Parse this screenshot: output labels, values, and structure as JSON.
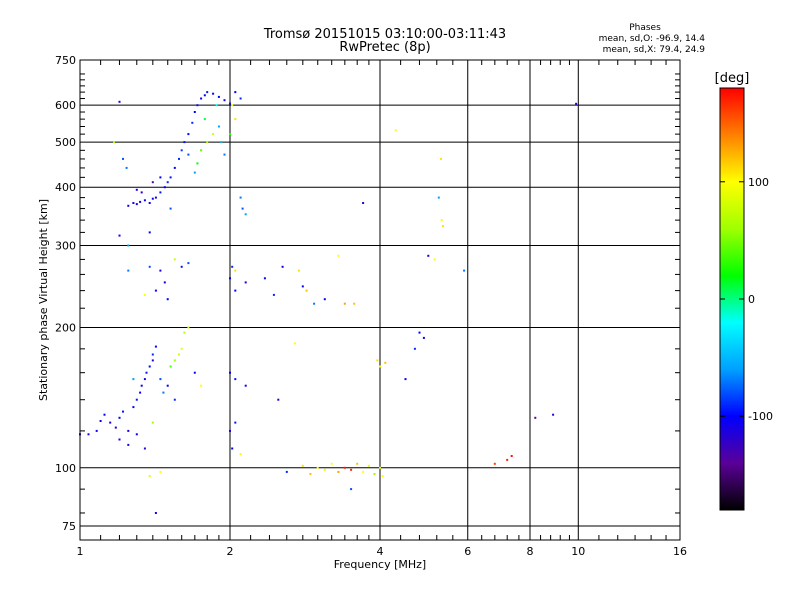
{
  "header": {
    "title_line1": "Tromsø 20151015 03:10:00-03:11:43",
    "title_line2": "RwPretec (8p)",
    "stats_title": "Phases",
    "stats_o": "mean, sd,O: -96.9, 14.4",
    "stats_x": "mean, sd,X:  79.4, 24.9"
  },
  "chart_data": {
    "type": "scatter",
    "xlabel": "Frequency [MHz]",
    "ylabel": "Stationary phase Virtual Height [km]",
    "x_scale": "log",
    "y_scale": "log",
    "xlim": [
      1,
      16
    ],
    "ylim": [
      70,
      750
    ],
    "x_ticks": [
      1,
      2,
      4,
      6,
      8,
      10,
      16
    ],
    "y_ticks": [
      75,
      100,
      200,
      300,
      400,
      500,
      600,
      750
    ],
    "grid": true,
    "colorbar": {
      "label": "[deg]",
      "min": -180,
      "max": 180,
      "ticks": [
        100,
        0,
        -100
      ],
      "colors": [
        "#000000",
        "#5a0098",
        "#0000ff",
        "#00a0ff",
        "#00ffff",
        "#00ff00",
        "#a0ff00",
        "#ffff00",
        "#ff8000",
        "#ff0000"
      ]
    },
    "points": [
      [
        1.0,
        118,
        -110
      ],
      [
        1.04,
        118,
        -110
      ],
      [
        1.08,
        120,
        -108
      ],
      [
        1.1,
        126,
        -105
      ],
      [
        1.12,
        130,
        -100
      ],
      [
        1.15,
        125,
        -112
      ],
      [
        1.18,
        122,
        -110
      ],
      [
        1.2,
        128,
        -100
      ],
      [
        1.22,
        132,
        -95
      ],
      [
        1.25,
        120,
        -110
      ],
      [
        1.28,
        135,
        -100
      ],
      [
        1.3,
        140,
        -95
      ],
      [
        1.32,
        145,
        -100
      ],
      [
        1.33,
        150,
        -105
      ],
      [
        1.35,
        155,
        -110
      ],
      [
        1.36,
        160,
        -95
      ],
      [
        1.38,
        165,
        -100
      ],
      [
        1.4,
        170,
        -110
      ],
      [
        1.4,
        175,
        -90
      ],
      [
        1.42,
        182,
        -100
      ],
      [
        1.45,
        155,
        -80
      ],
      [
        1.47,
        145,
        -70
      ],
      [
        1.5,
        150,
        -100
      ],
      [
        1.52,
        165,
        40
      ],
      [
        1.55,
        170,
        60
      ],
      [
        1.55,
        140,
        -90
      ],
      [
        1.58,
        175,
        80
      ],
      [
        1.6,
        180,
        90
      ],
      [
        1.62,
        195,
        70
      ],
      [
        1.65,
        200,
        85
      ],
      [
        1.7,
        160,
        -100
      ],
      [
        1.75,
        150,
        100
      ],
      [
        1.2,
        115,
        -110
      ],
      [
        1.25,
        112,
        -115
      ],
      [
        1.3,
        118,
        -105
      ],
      [
        1.35,
        110,
        -120
      ],
      [
        1.28,
        155,
        -60
      ],
      [
        1.4,
        125,
        60
      ],
      [
        1.45,
        98,
        100
      ],
      [
        1.38,
        96,
        90
      ],
      [
        1.42,
        80,
        -110
      ],
      [
        1.25,
        365,
        -105
      ],
      [
        1.28,
        370,
        -110
      ],
      [
        1.3,
        368,
        -108
      ],
      [
        1.32,
        372,
        -100
      ],
      [
        1.35,
        375,
        -105
      ],
      [
        1.38,
        370,
        -110
      ],
      [
        1.4,
        378,
        -100
      ],
      [
        1.42,
        380,
        -105
      ],
      [
        1.45,
        390,
        -95
      ],
      [
        1.48,
        400,
        -100
      ],
      [
        1.5,
        410,
        -90
      ],
      [
        1.52,
        420,
        -95
      ],
      [
        1.55,
        440,
        -100
      ],
      [
        1.58,
        460,
        -90
      ],
      [
        1.6,
        480,
        -85
      ],
      [
        1.62,
        500,
        -95
      ],
      [
        1.65,
        520,
        -100
      ],
      [
        1.68,
        550,
        -90
      ],
      [
        1.7,
        580,
        -100
      ],
      [
        1.72,
        600,
        -95
      ],
      [
        1.75,
        620,
        -105
      ],
      [
        1.78,
        630,
        -100
      ],
      [
        1.8,
        640,
        -95
      ],
      [
        1.85,
        635,
        -105
      ],
      [
        1.9,
        625,
        -100
      ],
      [
        1.95,
        615,
        -110
      ],
      [
        2.0,
        605,
        -95
      ],
      [
        2.05,
        640,
        -100
      ],
      [
        2.1,
        620,
        -90
      ],
      [
        1.65,
        470,
        -80
      ],
      [
        1.7,
        430,
        -60
      ],
      [
        1.72,
        450,
        20
      ],
      [
        1.75,
        480,
        40
      ],
      [
        1.8,
        500,
        60
      ],
      [
        1.85,
        520,
        80
      ],
      [
        1.9,
        540,
        -60
      ],
      [
        1.92,
        500,
        -50
      ],
      [
        1.95,
        470,
        -70
      ],
      [
        2.0,
        520,
        30
      ],
      [
        2.02,
        600,
        100
      ],
      [
        2.05,
        560,
        110
      ],
      [
        1.88,
        600,
        -20
      ],
      [
        1.78,
        560,
        10
      ],
      [
        1.2,
        610,
        -110
      ],
      [
        1.17,
        500,
        60
      ],
      [
        1.22,
        460,
        -80
      ],
      [
        1.24,
        440,
        -70
      ],
      [
        1.3,
        395,
        -110
      ],
      [
        1.33,
        390,
        -115
      ],
      [
        1.4,
        410,
        -140
      ],
      [
        1.45,
        420,
        -100
      ],
      [
        1.52,
        360,
        -80
      ],
      [
        1.2,
        315,
        -110
      ],
      [
        1.38,
        320,
        -100
      ],
      [
        1.25,
        300,
        -60
      ],
      [
        1.25,
        265,
        -70
      ],
      [
        1.38,
        270,
        -80
      ],
      [
        1.45,
        265,
        -110
      ],
      [
        1.48,
        250,
        -105
      ],
      [
        1.55,
        280,
        80
      ],
      [
        1.6,
        270,
        -95
      ],
      [
        1.65,
        275,
        -80
      ],
      [
        1.5,
        230,
        -100
      ],
      [
        1.42,
        240,
        -105
      ],
      [
        1.35,
        235,
        100
      ],
      [
        2.0,
        255,
        -100
      ],
      [
        2.02,
        270,
        -90
      ],
      [
        2.05,
        265,
        110
      ],
      [
        2.1,
        380,
        -70
      ],
      [
        2.12,
        360,
        -80
      ],
      [
        2.15,
        350,
        -60
      ],
      [
        2.05,
        240,
        -100
      ],
      [
        2.15,
        250,
        -110
      ],
      [
        2.35,
        255,
        -100
      ],
      [
        2.45,
        235,
        -90
      ],
      [
        2.55,
        270,
        -105
      ],
      [
        2.75,
        265,
        110
      ],
      [
        2.8,
        245,
        -100
      ],
      [
        2.85,
        240,
        120
      ],
      [
        2.95,
        225,
        -70
      ],
      [
        3.1,
        230,
        -100
      ],
      [
        3.3,
        285,
        100
      ],
      [
        3.4,
        225,
        130
      ],
      [
        3.55,
        225,
        120
      ],
      [
        3.7,
        370,
        -120
      ],
      [
        4.3,
        530,
        100
      ],
      [
        4.5,
        155,
        -100
      ],
      [
        4.7,
        180,
        -90
      ],
      [
        4.8,
        195,
        -100
      ],
      [
        4.9,
        190,
        -105
      ],
      [
        5.0,
        285,
        -110
      ],
      [
        5.15,
        280,
        100
      ],
      [
        5.25,
        380,
        -60
      ],
      [
        5.3,
        460,
        110
      ],
      [
        5.32,
        340,
        100
      ],
      [
        5.35,
        330,
        110
      ],
      [
        5.9,
        265,
        -70
      ],
      [
        6.8,
        102,
        160
      ],
      [
        7.2,
        104,
        170
      ],
      [
        7.35,
        106,
        175
      ],
      [
        8.2,
        128,
        -140
      ],
      [
        8.9,
        130,
        -120
      ],
      [
        9.9,
        604,
        -110
      ],
      [
        2.0,
        160,
        -100
      ],
      [
        2.05,
        155,
        -95
      ],
      [
        2.15,
        150,
        -105
      ],
      [
        2.5,
        140,
        -110
      ],
      [
        2.7,
        185,
        100
      ],
      [
        3.4,
        100,
        170
      ],
      [
        3.6,
        102,
        120
      ],
      [
        3.7,
        98,
        100
      ],
      [
        3.8,
        101,
        90
      ],
      [
        3.9,
        97,
        60
      ],
      [
        4.0,
        100,
        80
      ],
      [
        4.05,
        96,
        100
      ],
      [
        3.95,
        170,
        110
      ],
      [
        4.0,
        165,
        100
      ],
      [
        4.1,
        168,
        120
      ],
      [
        3.5,
        90,
        -80
      ],
      [
        2.6,
        98,
        -90
      ],
      [
        2.8,
        101,
        110
      ],
      [
        2.9,
        97,
        120
      ],
      [
        3.0,
        100,
        100
      ],
      [
        3.1,
        99,
        90
      ],
      [
        3.2,
        102,
        100
      ],
      [
        3.3,
        98,
        130
      ],
      [
        3.5,
        99,
        170
      ],
      [
        2.1,
        107,
        100
      ],
      [
        2.0,
        120,
        -110
      ],
      [
        2.02,
        110,
        -100
      ],
      [
        2.05,
        125,
        -95
      ]
    ]
  }
}
